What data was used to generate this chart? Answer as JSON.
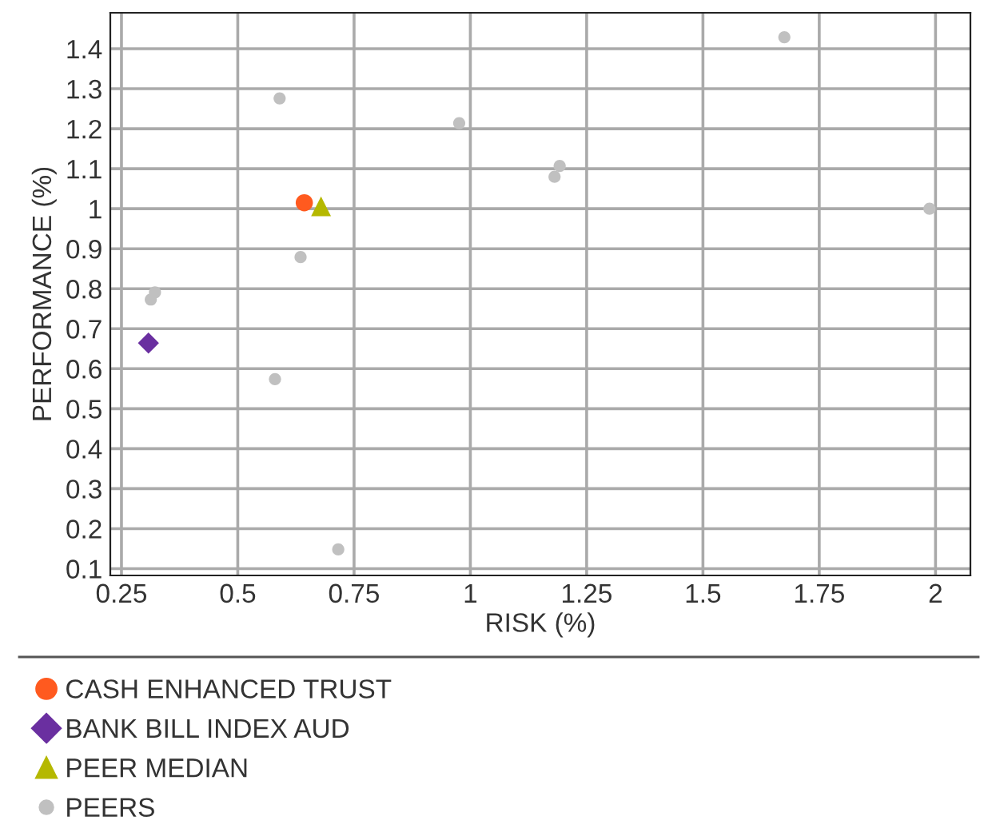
{
  "chart_data": {
    "type": "scatter",
    "xlabel": "RISK (%)",
    "ylabel": "PERFORMANCE (%)",
    "xlim": [
      0.226,
      2.075
    ],
    "ylim": [
      0.083,
      1.49
    ],
    "xticks": [
      0.25,
      0.5,
      0.75,
      1,
      1.25,
      1.5,
      1.75,
      2
    ],
    "yticks": [
      0.1,
      0.2,
      0.3,
      0.4,
      0.5,
      0.6,
      0.7,
      0.8,
      0.9,
      {
        "value": 1.0,
        "label": "1"
      },
      1.1,
      1.2,
      1.3,
      1.4
    ],
    "grid": true,
    "legend": "bottom",
    "series": [
      {
        "name": "CASH ENHANCED TRUST",
        "color": "#ff5a1f",
        "marker": "circle",
        "x": [
          0.643
        ],
        "values": [
          1.015
        ]
      },
      {
        "name": "BANK BILL INDEX AUD",
        "color": "#6a2fa0",
        "marker": "diamond",
        "x": [
          0.308
        ],
        "values": [
          0.664
        ]
      },
      {
        "name": "PEER MEDIAN",
        "color": "#b5b800",
        "marker": "triangle",
        "x": [
          0.679
        ],
        "values": [
          1.006
        ]
      },
      {
        "name": "PEERS",
        "color": "#c0c0c0",
        "marker": "circle",
        "x": [
          0.59,
          0.976,
          0.635,
          0.322,
          0.313,
          0.58,
          0.716,
          1.192,
          1.181,
          1.675,
          1.987
        ],
        "values": [
          1.276,
          1.214,
          0.879,
          0.791,
          0.773,
          0.574,
          0.148,
          1.107,
          1.08,
          1.429,
          1.0
        ]
      }
    ]
  }
}
